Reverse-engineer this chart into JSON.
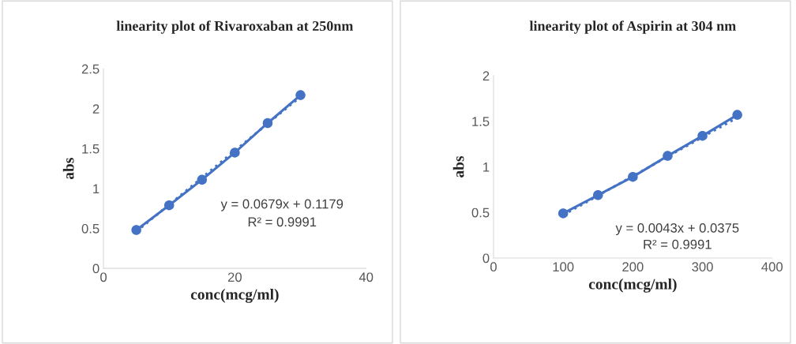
{
  "chart_data": [
    {
      "type": "line",
      "title": "linearity plot of Rivaroxaban at 250nm",
      "xlabel": "conc(mcg/ml)",
      "ylabel": "abs",
      "x": [
        5,
        10,
        15,
        20,
        25,
        30
      ],
      "series": [
        {
          "color": "#4472c4",
          "values": [
            0.48,
            0.79,
            1.11,
            1.45,
            1.82,
            2.17
          ],
          "marker": "circle",
          "line_style": "solid"
        },
        {
          "type": "line",
          "color": "#4472c4",
          "x": [
            5,
            30
          ],
          "values": [
            0.46,
            2.15
          ],
          "marker": "none",
          "line_style": "dotted"
        }
      ],
      "xlim": [
        0,
        40
      ],
      "xticks": [
        0,
        20,
        40
      ],
      "ylim": [
        0,
        2.5
      ],
      "yticks": [
        0,
        0.5,
        1,
        1.5,
        2,
        2.5
      ],
      "annotations": [
        "y = 0.0679x + 0.1179",
        "R² = 0.9991"
      ],
      "grid": false,
      "legend": false
    },
    {
      "type": "line",
      "title": "linearity plot of Aspirin at 304 nm",
      "xlabel": "conc(mcg/ml)",
      "ylabel": "abs",
      "x": [
        100,
        150,
        200,
        250,
        300,
        350
      ],
      "series": [
        {
          "color": "#4472c4",
          "values": [
            0.49,
            0.69,
            0.89,
            1.12,
            1.34,
            1.57
          ],
          "marker": "circle",
          "line_style": "solid"
        },
        {
          "type": "line",
          "color": "#4472c4",
          "x": [
            100,
            350
          ],
          "values": [
            0.47,
            1.54
          ],
          "marker": "none",
          "line_style": "dotted"
        }
      ],
      "xlim": [
        0,
        400
      ],
      "xticks": [
        0,
        100,
        200,
        300,
        400
      ],
      "ylim": [
        0,
        2
      ],
      "yticks": [
        0,
        0.5,
        1,
        1.5,
        2
      ],
      "annotations": [
        "y = 0.0043x + 0.0375",
        "R² = 0.9991"
      ],
      "grid": false,
      "legend": false
    }
  ]
}
